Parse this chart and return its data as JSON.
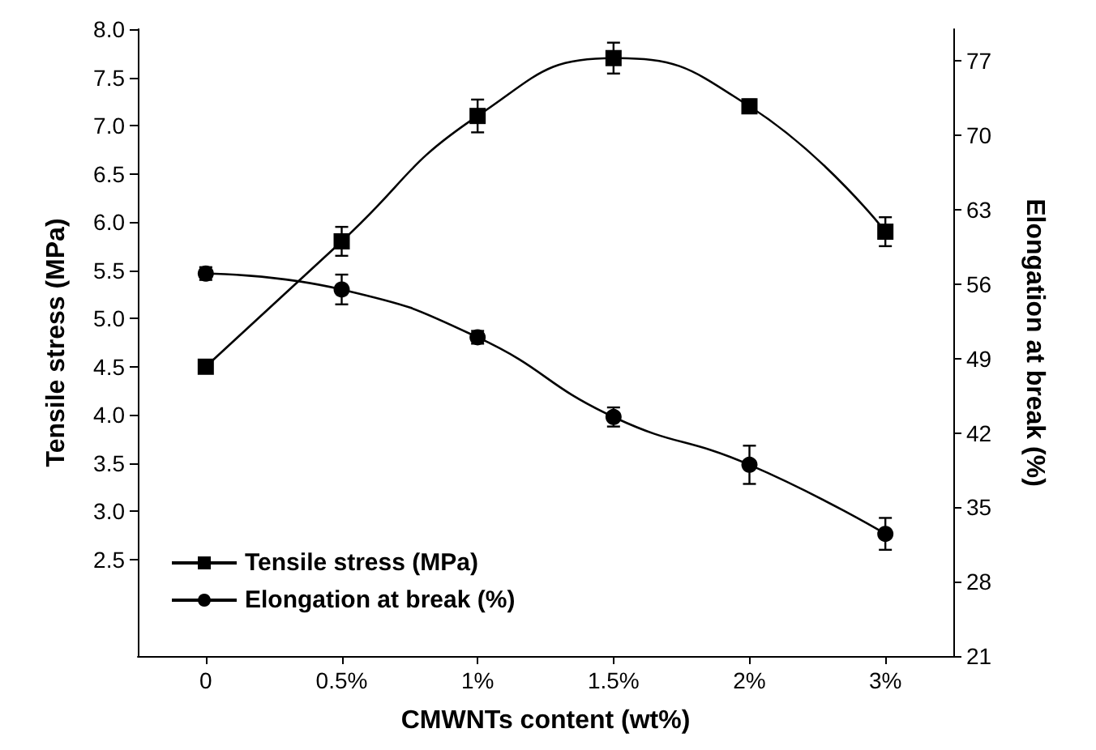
{
  "chart_data": {
    "type": "line",
    "xlabel": "CMWNTs content (wt%)",
    "ylabel": "Tensile stress (MPa)",
    "y2label": "Elongation at break (%)",
    "categories": [
      "0",
      "0.5%",
      "1%",
      "1.5%",
      "2%",
      "3%"
    ],
    "series": [
      {
        "name": "Tensile stress (MPa)",
        "color": "#000000",
        "marker": "square",
        "values": [
          4.5,
          5.8,
          7.1,
          7.7,
          7.2,
          5.9
        ],
        "errors": [
          0.06,
          0.15,
          0.17,
          0.16,
          0.07,
          0.15
        ]
      },
      {
        "name": "Elongation at break (%)",
        "color": "#000000",
        "marker": "circle",
        "axis": "y2",
        "values": [
          57,
          55.5,
          51,
          43.5,
          39,
          32.5
        ],
        "errors": [
          0.6,
          1.4,
          0.6,
          0.9,
          1.8,
          1.5
        ]
      }
    ],
    "ylim": [
      1.5,
      8
    ],
    "yticks": [
      2.5,
      {
        "value": 3,
        "label": "3.0"
      },
      3.5,
      {
        "value": 4,
        "label": "4.0"
      },
      4.5,
      {
        "value": 5,
        "label": "5.0"
      },
      5.5,
      {
        "value": 6,
        "label": "6.0"
      },
      6.5,
      {
        "value": 7,
        "label": "7.0"
      },
      7.5,
      {
        "value": 8,
        "label": "8.0"
      }
    ],
    "y2lim": [
      21,
      80
    ],
    "y2ticks": [
      21,
      28,
      35,
      42,
      49,
      56,
      63,
      70,
      77
    ],
    "legend": "bottom left",
    "grid": false,
    "line_style": "solid"
  }
}
